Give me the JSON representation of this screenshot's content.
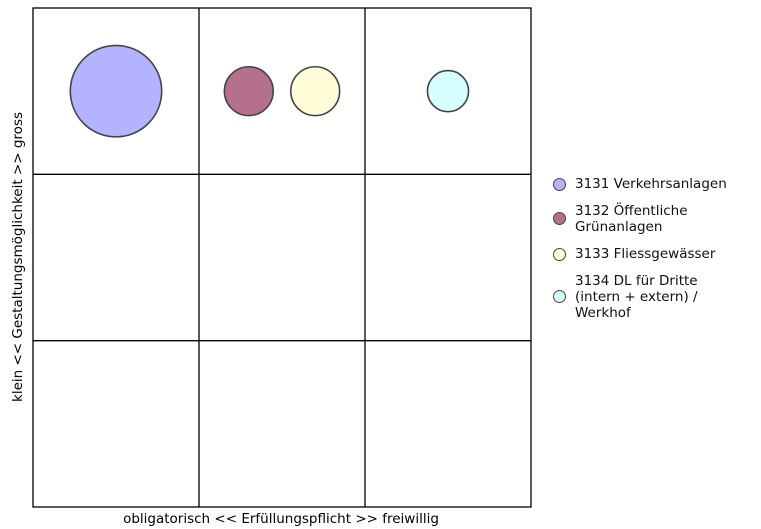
{
  "chart_data": {
    "type": "scatter",
    "subtype": "bubble-matrix",
    "xlabel": "obligatorisch << Erfüllungspflicht >> freiwillig",
    "ylabel": "klein << Gestaltungsmöglichkeit >> gross",
    "xlim": [
      0,
      3
    ],
    "ylim": [
      0,
      3
    ],
    "grid": true,
    "grid_divisions": 3,
    "legend_position": "right",
    "series": [
      {
        "name": "3131 Verkehrsanlagen",
        "x": 0.5,
        "y": 2.5,
        "size": 4.2,
        "color": "#b3b3ff"
      },
      {
        "name": "3132 Öffentliche\nGrünanlagen",
        "x": 1.3,
        "y": 2.5,
        "size": 1.2,
        "color": "#b5708e"
      },
      {
        "name": "3133 Fliessgewässer",
        "x": 1.7,
        "y": 2.5,
        "size": 1.2,
        "color": "#fffdd7"
      },
      {
        "name": "3134 DL für Dritte\n(intern + extern) /\nWerkhof",
        "x": 2.5,
        "y": 2.5,
        "size": 0.85,
        "color": "#d6fdff"
      }
    ]
  }
}
